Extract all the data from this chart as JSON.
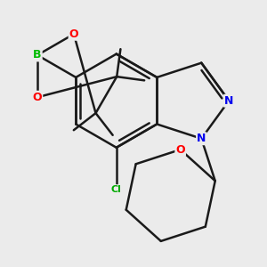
{
  "bg_color": "#ebebeb",
  "bond_color": "#1a1a1a",
  "bond_width": 1.8,
  "atom_colors": {
    "B": "#00bb00",
    "O": "#ff0000",
    "N": "#0000ee",
    "Cl": "#00aa00",
    "C": "#1a1a1a"
  }
}
